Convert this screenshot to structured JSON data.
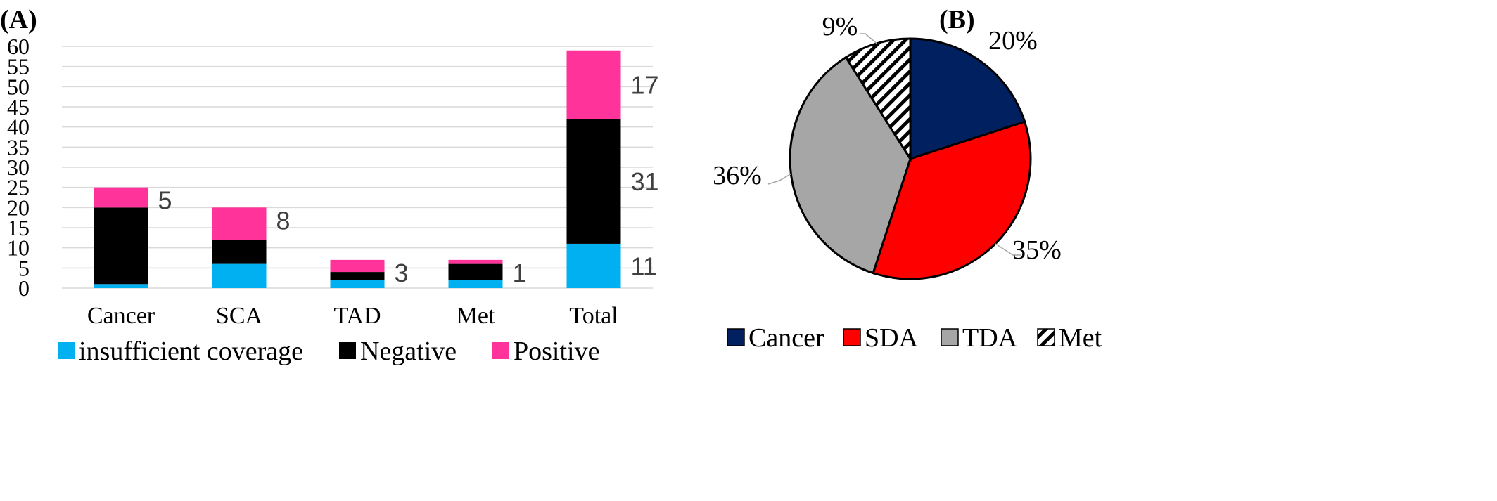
{
  "panels": {
    "a_label": "(A)",
    "b_label": "(B)"
  },
  "colors": {
    "insufficient": "#00b0f0",
    "negative": "#000000",
    "positive": "#ff3399",
    "cancer": "#002060",
    "sda": "#ff0000",
    "tda": "#a6a6a6",
    "met_hatch": "#000000",
    "grid": "#d9d9d9"
  },
  "chart_data": [
    {
      "type": "bar",
      "stacked": true,
      "title": "",
      "xlabel": "",
      "ylabel": "",
      "categories": [
        "Cancer",
        "SCA",
        "TAD",
        "Met",
        "Total"
      ],
      "series": [
        {
          "name": "insufficient coverage",
          "color_key": "insufficient",
          "values": [
            1,
            6,
            2,
            2,
            11
          ]
        },
        {
          "name": "Negative",
          "color_key": "negative",
          "values": [
            19,
            6,
            2,
            4,
            31
          ]
        },
        {
          "name": "Positive",
          "color_key": "positive",
          "values": [
            5,
            8,
            3,
            1,
            17
          ]
        }
      ],
      "annotations": [
        {
          "category": "Cancer",
          "text": "5"
        },
        {
          "category": "SCA",
          "text": "8"
        },
        {
          "category": "TAD",
          "text": "3"
        },
        {
          "category": "Met",
          "text": "1"
        },
        {
          "category": "Total",
          "text": "17"
        },
        {
          "category": "Total",
          "text": "31"
        },
        {
          "category": "Total",
          "text": "11"
        }
      ],
      "ylim": [
        0,
        60
      ],
      "yticks": [
        "0",
        "5",
        "10",
        "15",
        "20",
        "25",
        "30",
        "35",
        "40",
        "45",
        "50",
        "55",
        "60"
      ],
      "grid": true,
      "legend_position": "bottom"
    },
    {
      "type": "pie",
      "title": "",
      "slices": [
        {
          "name": "Cancer",
          "value": 20,
          "label": "20%",
          "color_key": "cancer"
        },
        {
          "name": "SDA",
          "value": 35,
          "label": "35%",
          "color_key": "sda"
        },
        {
          "name": "TDA",
          "value": 36,
          "label": "36%",
          "color_key": "tda"
        },
        {
          "name": "Met",
          "value": 9,
          "label": "9%",
          "color_key": "met_hatch",
          "hatched": true
        }
      ],
      "start_angle": "top",
      "direction": "clockwise",
      "legend_position": "bottom"
    }
  ]
}
